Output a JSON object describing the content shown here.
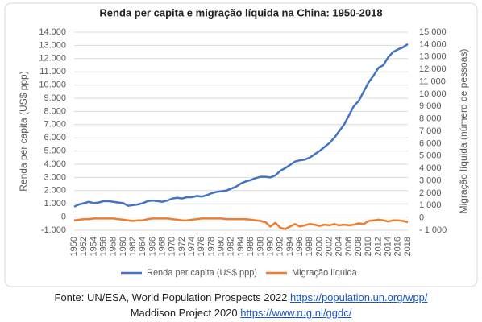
{
  "chart_data": {
    "type": "line",
    "title": "Renda per capita e migração líquida na China: 1950-2018",
    "ylabel": "Renda per capita (US$ ppp)",
    "y2label": "Migração líquida (número de pessoas)",
    "x": [
      1950,
      1951,
      1952,
      1953,
      1954,
      1955,
      1956,
      1957,
      1958,
      1959,
      1960,
      1961,
      1962,
      1963,
      1964,
      1965,
      1966,
      1967,
      1968,
      1969,
      1970,
      1971,
      1972,
      1973,
      1974,
      1975,
      1976,
      1977,
      1978,
      1979,
      1980,
      1981,
      1982,
      1983,
      1984,
      1985,
      1986,
      1987,
      1988,
      1989,
      1990,
      1991,
      1992,
      1993,
      1994,
      1995,
      1996,
      1997,
      1998,
      1999,
      2000,
      2001,
      2002,
      2003,
      2004,
      2005,
      2006,
      2007,
      2008,
      2009,
      2010,
      2011,
      2012,
      2013,
      2014,
      2015,
      2016,
      2017,
      2018
    ],
    "xlim": [
      1950,
      2018
    ],
    "xticks": [
      1950,
      1952,
      1954,
      1956,
      1958,
      1960,
      1962,
      1964,
      1966,
      1968,
      1970,
      1972,
      1974,
      1976,
      1978,
      1980,
      1982,
      1984,
      1986,
      1988,
      1990,
      1992,
      1994,
      1996,
      1998,
      2000,
      2002,
      2004,
      2006,
      2008,
      2010,
      2012,
      2014,
      2016,
      2018
    ],
    "ylim": [
      -1000,
      14000
    ],
    "yticks": [
      {
        "value": -1000,
        "label": "-1.000"
      },
      0,
      {
        "value": 1000,
        "label": "1.000"
      },
      {
        "value": 2000,
        "label": "2.000"
      },
      {
        "value": 3000,
        "label": "3.000"
      },
      {
        "value": 4000,
        "label": "4.000"
      },
      {
        "value": 5000,
        "label": "5.000"
      },
      {
        "value": 6000,
        "label": "6.000"
      },
      {
        "value": 7000,
        "label": "7.000"
      },
      {
        "value": 8000,
        "label": "8.000"
      },
      {
        "value": 9000,
        "label": "9.000"
      },
      {
        "value": 10000,
        "label": "10.000"
      },
      {
        "value": 11000,
        "label": "11.000"
      },
      {
        "value": 12000,
        "label": "12.000"
      },
      {
        "value": 13000,
        "label": "13.000"
      },
      {
        "value": 14000,
        "label": "14.000"
      }
    ],
    "y2lim": [
      -1000,
      15000
    ],
    "y2ticks": [
      {
        "value": -1000,
        "label": "- 1 000"
      },
      0,
      {
        "value": 1000,
        "label": "1 000"
      },
      {
        "value": 2000,
        "label": "2 000"
      },
      {
        "value": 3000,
        "label": "3 000"
      },
      {
        "value": 4000,
        "label": "4 000"
      },
      {
        "value": 5000,
        "label": "5 000"
      },
      {
        "value": 6000,
        "label": "6 000"
      },
      {
        "value": 7000,
        "label": "7 000"
      },
      {
        "value": 8000,
        "label": "8 000"
      },
      {
        "value": 9000,
        "label": "9 000"
      },
      {
        "value": 10000,
        "label": "10 000"
      },
      {
        "value": 11000,
        "label": "11 000"
      },
      {
        "value": 12000,
        "label": "12 000"
      },
      {
        "value": 13000,
        "label": "13 000"
      },
      {
        "value": 14000,
        "label": "14 000"
      },
      {
        "value": 15000,
        "label": "15 000"
      }
    ],
    "grid": true,
    "legend": "bottom",
    "series": [
      {
        "name": "Renda per capita (US$ ppp)",
        "color": "#4472c4",
        "axis": "y",
        "values": [
          780,
          950,
          1050,
          1150,
          1050,
          1100,
          1200,
          1200,
          1150,
          1100,
          1050,
          850,
          900,
          950,
          1050,
          1200,
          1250,
          1200,
          1150,
          1250,
          1400,
          1450,
          1400,
          1500,
          1500,
          1600,
          1550,
          1650,
          1800,
          1900,
          1950,
          2000,
          2150,
          2300,
          2550,
          2700,
          2800,
          2950,
          3050,
          3050,
          3000,
          3150,
          3500,
          3700,
          3950,
          4200,
          4300,
          4350,
          4500,
          4750,
          5000,
          5300,
          5600,
          6000,
          6500,
          7000,
          7700,
          8400,
          8800,
          9500,
          10200,
          10700,
          11300,
          11500,
          12100,
          12500,
          12700,
          12850,
          13100
        ]
      },
      {
        "name": "Migração líquida",
        "color": "#ed7d31",
        "axis": "y2",
        "values": [
          -200,
          -150,
          -100,
          -100,
          -50,
          -50,
          -50,
          -50,
          -50,
          -100,
          -150,
          -200,
          -250,
          -200,
          -200,
          -100,
          -50,
          -50,
          -50,
          -50,
          -100,
          -150,
          -200,
          -200,
          -150,
          -100,
          -50,
          -50,
          -50,
          -50,
          -50,
          -100,
          -100,
          -100,
          -100,
          -100,
          -150,
          -200,
          -250,
          -350,
          -700,
          -400,
          -800,
          -900,
          -700,
          -500,
          -700,
          -600,
          -500,
          -550,
          -650,
          -550,
          -600,
          -500,
          -600,
          -550,
          -600,
          -550,
          -450,
          -500,
          -250,
          -200,
          -150,
          -200,
          -300,
          -200,
          -200,
          -250,
          -350
        ]
      }
    ]
  },
  "source": {
    "line1": "Fonte: UN/ESA, World Population Prospects 2022",
    "link1": "https://population.un.org/wpp/",
    "line2": "Maddison Project 2020",
    "link2": "https://www.rug.nl/ggdc/"
  }
}
